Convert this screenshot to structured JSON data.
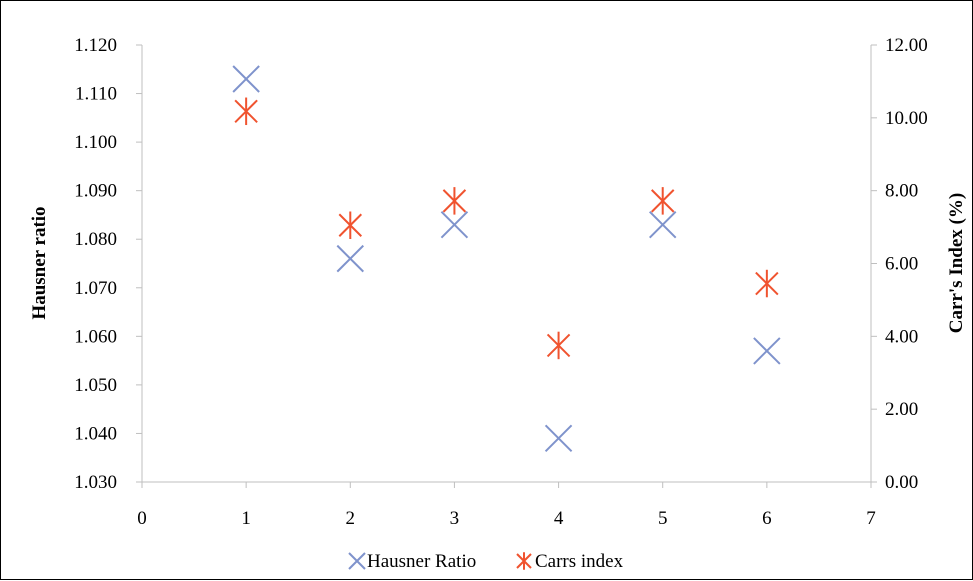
{
  "chart_data": {
    "type": "scatter",
    "title": "",
    "xlabel": "",
    "ylabel": "Hausner ratio",
    "y2label": "Carr's Index (%)",
    "xlim": [
      0,
      7
    ],
    "ylim": [
      1.03,
      1.12
    ],
    "y2lim": [
      0,
      12
    ],
    "x_ticks": [
      "0",
      "1",
      "2",
      "3",
      "4",
      "5",
      "6",
      "7"
    ],
    "y_ticks": [
      "1.030",
      "1.040",
      "1.050",
      "1.060",
      "1.070",
      "1.080",
      "1.090",
      "1.100",
      "1.110",
      "1.120"
    ],
    "y2_ticks": [
      "0.00",
      "2.00",
      "4.00",
      "6.00",
      "8.00",
      "10.00",
      "12.00"
    ],
    "grid": false,
    "legend_position": "bottom",
    "series": [
      {
        "name": "Hausner Ratio",
        "axis": "left",
        "marker": "x-icon",
        "color": "#7F93CC",
        "x": [
          1,
          2,
          3,
          4,
          5,
          6
        ],
        "y": [
          1.113,
          1.076,
          1.083,
          1.039,
          1.083,
          1.057
        ]
      },
      {
        "name": "Carrs index",
        "axis": "right",
        "marker": "asterisk-icon",
        "color": "#F0532F",
        "x": [
          1,
          2,
          3,
          4,
          5,
          6
        ],
        "y": [
          10.18,
          7.05,
          7.72,
          3.75,
          7.72,
          5.45
        ]
      }
    ]
  }
}
